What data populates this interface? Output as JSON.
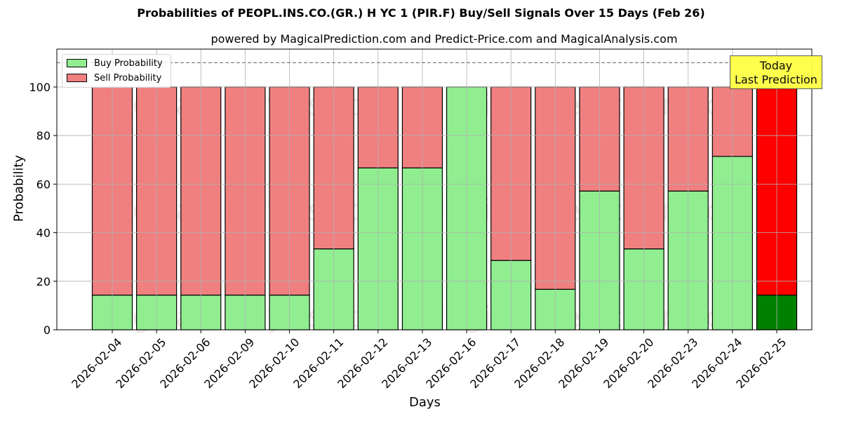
{
  "chart_data": {
    "type": "bar",
    "stacked": true,
    "title": "Probabilities of PEOPL.INS.CO.(GR.) H YC 1 (PIR.F) Buy/Sell Signals Over 15 Days (Feb 26)",
    "subtitle": "powered by MagicalPrediction.com and Predict-Price.com and MagicalAnalysis.com",
    "xlabel": "Days",
    "ylabel": "Probability",
    "ylim": [
      0,
      115
    ],
    "yticks": [
      0,
      20,
      40,
      60,
      80,
      100
    ],
    "grid": true,
    "legend_position": "upper left",
    "categories": [
      "2026-02-04",
      "2026-02-05",
      "2026-02-06",
      "2026-02-09",
      "2026-02-10",
      "2026-02-11",
      "2026-02-12",
      "2026-02-13",
      "2026-02-16",
      "2026-02-17",
      "2026-02-18",
      "2026-02-19",
      "2026-02-20",
      "2026-02-23",
      "2026-02-24",
      "2026-02-25"
    ],
    "series": [
      {
        "name": "Buy Probability",
        "color": "#90ee90",
        "values": [
          14.29,
          14.29,
          14.29,
          14.29,
          14.29,
          33.33,
          66.67,
          66.67,
          100,
          28.57,
          16.67,
          57.14,
          33.33,
          57.14,
          71.43,
          14.29
        ]
      },
      {
        "name": "Sell Probability",
        "color": "#f08080",
        "values": [
          85.71,
          85.71,
          85.71,
          85.71,
          85.71,
          66.67,
          33.33,
          33.33,
          0,
          71.43,
          83.33,
          42.86,
          66.67,
          42.86,
          28.57,
          85.71
        ]
      }
    ],
    "highlight": {
      "index": 15,
      "buy_color": "#008000",
      "sell_color": "#ff0000"
    },
    "reference_line": {
      "y": 110,
      "style": "dashed",
      "color": "#808080"
    },
    "annotation": {
      "line1": "Today",
      "line2": "Last Prediction",
      "background": "#ffff44"
    },
    "watermarks": [
      "MagicalAnalysis.com",
      "MagicalPrediction.com"
    ]
  }
}
